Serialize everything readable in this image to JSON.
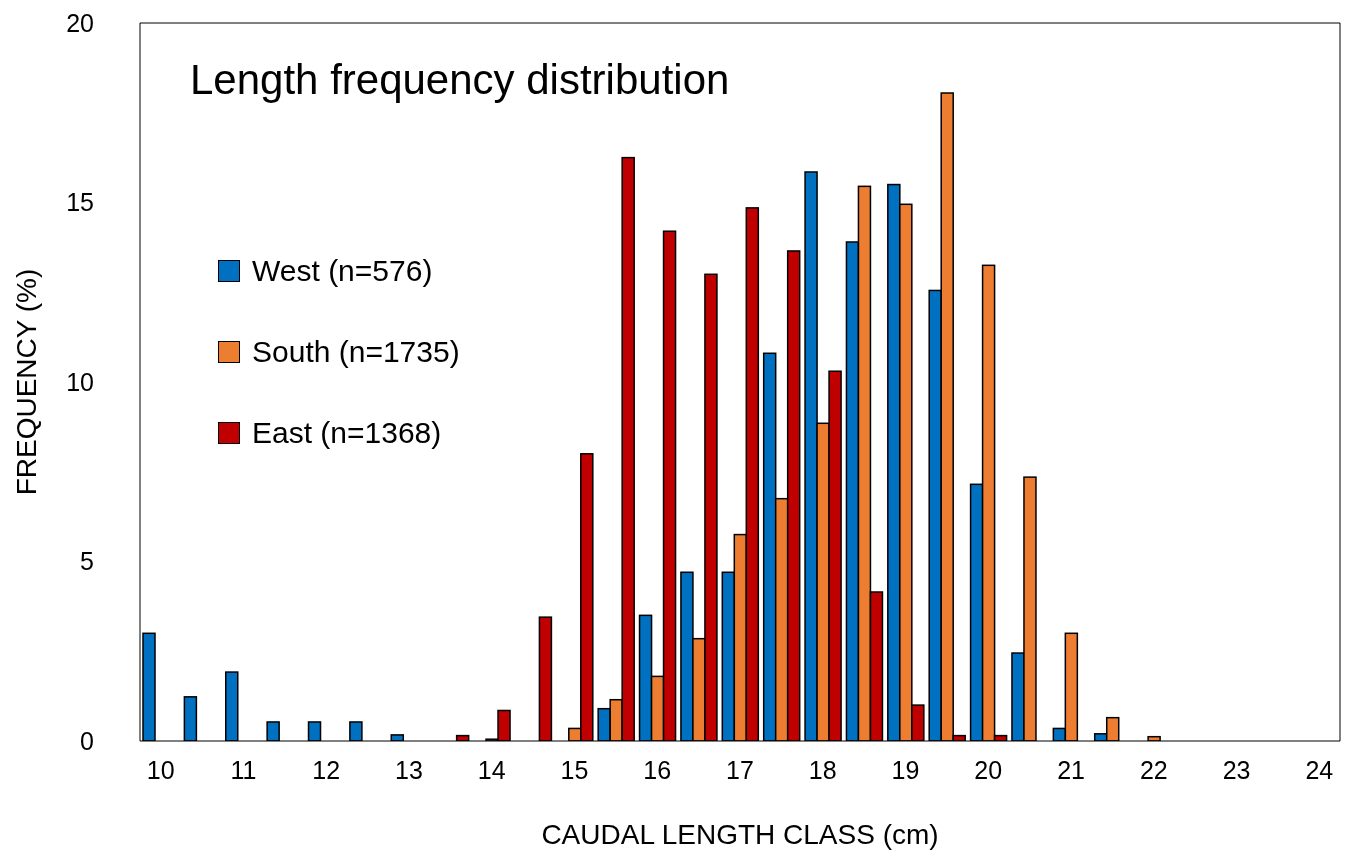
{
  "chart_data": {
    "type": "bar",
    "title": "Length frequency distribution",
    "xlabel": "CAUDAL LENGTH CLASS (cm)",
    "ylabel": "FREQUENCY (%)",
    "categories": [
      "10",
      null,
      "11",
      null,
      "12",
      null,
      "13",
      null,
      "14",
      null,
      "15",
      null,
      "16",
      null,
      "17",
      null,
      "18",
      null,
      "19",
      null,
      "20",
      null,
      "21",
      null,
      "22",
      null,
      "23",
      null,
      "24"
    ],
    "series": [
      {
        "name": "West (n=576)",
        "color": "#0070c0",
        "values": [
          3.0,
          1.23,
          1.92,
          0.53,
          0.53,
          0.53,
          0.17,
          0,
          0,
          0,
          0,
          0.9,
          3.5,
          4.7,
          4.7,
          10.8,
          15.85,
          13.9,
          15.5,
          12.55,
          7.15,
          2.45,
          0.35,
          0.2,
          0,
          0,
          0,
          0,
          0
        ]
      },
      {
        "name": "South (n=1735)",
        "color": "#ed7d31",
        "values": [
          0,
          0,
          0,
          0,
          0,
          0,
          0,
          0,
          0.05,
          0,
          0.35,
          1.15,
          1.8,
          2.85,
          5.75,
          6.75,
          8.85,
          15.45,
          14.95,
          18.05,
          13.25,
          7.35,
          3.0,
          0.65,
          0.12,
          0,
          0,
          0,
          0
        ]
      },
      {
        "name": "East (n=1368)",
        "color": "#c00000",
        "values": [
          0,
          0,
          0,
          0,
          0,
          0,
          0,
          0.15,
          0.85,
          3.45,
          8.0,
          16.25,
          14.2,
          13.0,
          14.85,
          13.65,
          10.3,
          4.15,
          1.0,
          0.15,
          0.15,
          0,
          0,
          0,
          0,
          0,
          0,
          0,
          0
        ]
      }
    ],
    "ylim": [
      0,
      20
    ],
    "yticks": [
      0,
      5,
      10,
      15,
      20
    ],
    "grid": false,
    "legend": "left"
  }
}
